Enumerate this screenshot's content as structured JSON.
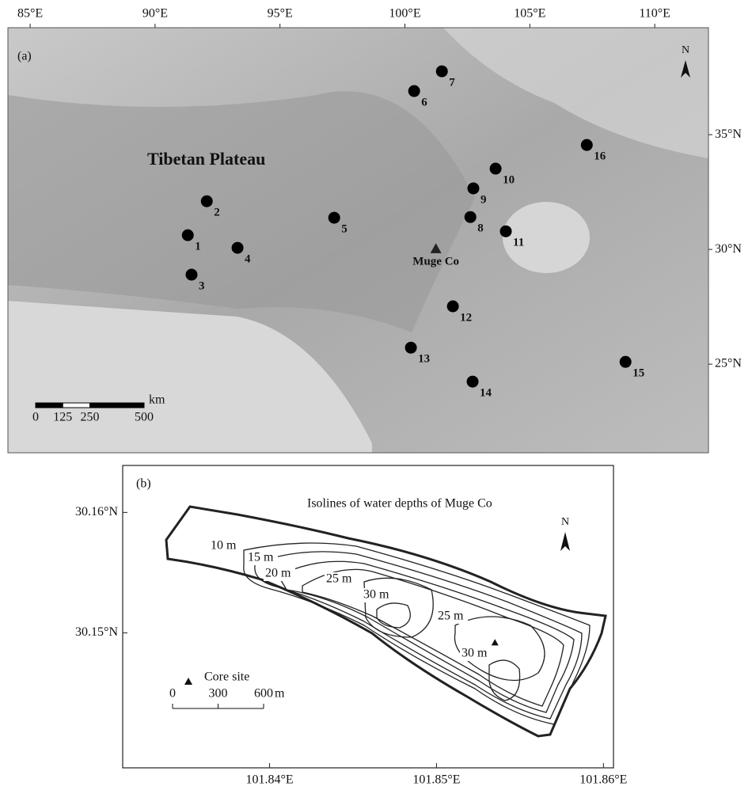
{
  "panel_a": {
    "label": "(a)",
    "xlim": [
      84.11,
      112.15
    ],
    "ylim": [
      21.14,
      39.66
    ],
    "xticks": [
      {
        "value": 85,
        "label": "85°E"
      },
      {
        "value": 90,
        "label": "90°E"
      },
      {
        "value": 95,
        "label": "95°E"
      },
      {
        "value": 100,
        "label": "100°E"
      },
      {
        "value": 105,
        "label": "105°E"
      },
      {
        "value": 110,
        "label": "110°E"
      }
    ],
    "yticks": [
      {
        "value": 35,
        "label": "35°N"
      },
      {
        "value": 30,
        "label": "30°N"
      },
      {
        "value": 25,
        "label": "25°N"
      }
    ],
    "region_label": "Tibetan Plateau",
    "north": "N",
    "sites": [
      {
        "label": "1",
        "lon": 91.31,
        "lat": 30.62
      },
      {
        "label": "2",
        "lon": 92.07,
        "lat": 32.1
      },
      {
        "label": "3",
        "lon": 91.46,
        "lat": 28.9
      },
      {
        "label": "4",
        "lon": 93.3,
        "lat": 30.07
      },
      {
        "label": "5",
        "lon": 97.17,
        "lat": 31.38
      },
      {
        "label": "6",
        "lon": 100.37,
        "lat": 36.9
      },
      {
        "label": "7",
        "lon": 101.48,
        "lat": 37.76
      },
      {
        "label": "8",
        "lon": 102.62,
        "lat": 31.41
      },
      {
        "label": "9",
        "lon": 102.74,
        "lat": 32.66
      },
      {
        "label": "10",
        "lon": 103.63,
        "lat": 33.52
      },
      {
        "label": "11",
        "lon": 104.04,
        "lat": 30.79
      },
      {
        "label": "12",
        "lon": 101.92,
        "lat": 27.52
      },
      {
        "label": "13",
        "lon": 100.24,
        "lat": 25.72
      },
      {
        "label": "14",
        "lon": 102.71,
        "lat": 24.24
      },
      {
        "label": "15",
        "lon": 108.83,
        "lat": 25.1
      },
      {
        "label": "16",
        "lon": 107.28,
        "lat": 34.55
      }
    ],
    "lake": {
      "label": "Muge Co",
      "lon": 101.24,
      "lat": 30.03
    },
    "scale_bar": {
      "ticks": [
        0,
        125,
        250,
        500
      ],
      "unit": "km"
    }
  },
  "panel_b": {
    "label": "(b)",
    "title": "Isolines of water depths of Muge Co",
    "xlim": [
      101.8312,
      101.8606
    ],
    "ylim": [
      30.1388,
      30.1639
    ],
    "xticks": [
      {
        "value": 101.84,
        "label": "101.84°E"
      },
      {
        "value": 101.85,
        "label": "101.85°E"
      },
      {
        "value": 101.86,
        "label": "101.86°E"
      }
    ],
    "yticks": [
      {
        "value": 30.16,
        "label": "30.16°N"
      },
      {
        "value": 30.15,
        "label": "30.15°N"
      }
    ],
    "north": "N",
    "contour_labels": [
      "10 m",
      "15 m",
      "20 m",
      "25 m",
      "30 m",
      "25 m",
      "30 m"
    ],
    "core_site": {
      "label": "Core site",
      "lon": 101.8535,
      "lat": 30.1492
    },
    "scale_bar": {
      "ticks": [
        0,
        300,
        600
      ],
      "unit": "m"
    }
  }
}
